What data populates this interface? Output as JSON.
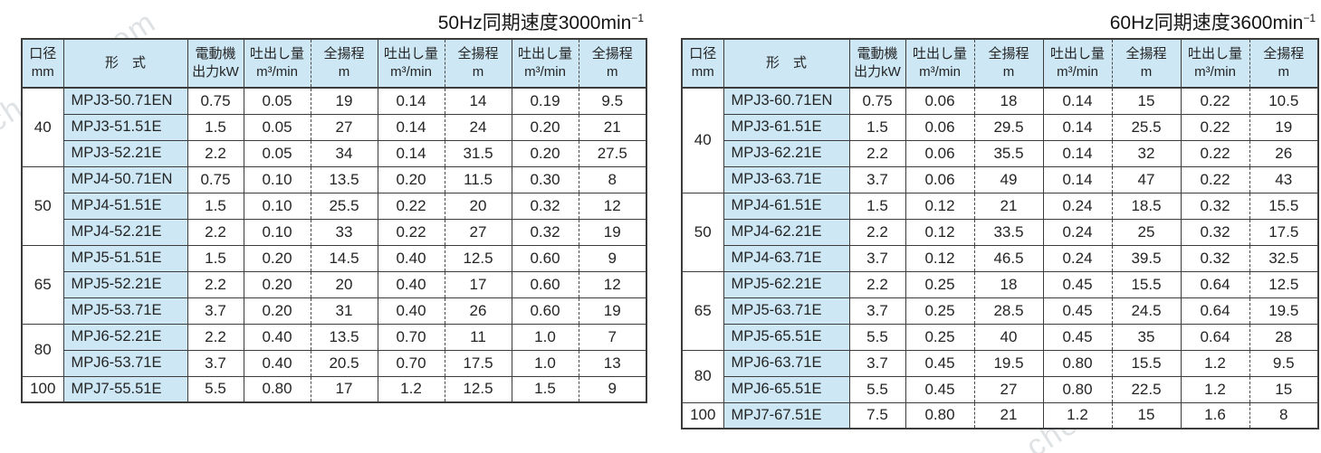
{
  "watermark": "chem17.com",
  "colors": {
    "header_background": "#cde7f5",
    "model_cell_background": "#cde7f5",
    "border": "#3c3c3c",
    "text": "#242424"
  },
  "headers": {
    "diameter_l1": "口径",
    "diameter_l2": "mm",
    "model": "形　式",
    "motor_l1": "電動機",
    "motor_l2": "出力kW",
    "discharge_l1": "吐出し量",
    "discharge_l2": "m³/min",
    "head_l1": "全揚程",
    "head_l2": "m"
  },
  "tables": [
    {
      "id": "50hz",
      "title_main": "50Hz同期速度3000min",
      "title_sup": "−1",
      "groups": [
        {
          "diameter": "40",
          "rows": [
            {
              "model": "MPJ3-50.71EN",
              "values": [
                "0.75",
                "0.05",
                "19",
                "0.14",
                "14",
                "0.19",
                "9.5"
              ]
            },
            {
              "model": "MPJ3-51.51E",
              "values": [
                "1.5",
                "0.05",
                "27",
                "0.14",
                "24",
                "0.20",
                "21"
              ]
            },
            {
              "model": "MPJ3-52.21E",
              "values": [
                "2.2",
                "0.05",
                "34",
                "0.14",
                "31.5",
                "0.20",
                "27.5"
              ]
            }
          ]
        },
        {
          "diameter": "50",
          "rows": [
            {
              "model": "MPJ4-50.71EN",
              "values": [
                "0.75",
                "0.10",
                "13.5",
                "0.20",
                "11.5",
                "0.30",
                "8"
              ]
            },
            {
              "model": "MPJ4-51.51E",
              "values": [
                "1.5",
                "0.10",
                "25.5",
                "0.22",
                "20",
                "0.32",
                "12"
              ]
            },
            {
              "model": "MPJ4-52.21E",
              "values": [
                "2.2",
                "0.10",
                "33",
                "0.22",
                "27",
                "0.32",
                "19"
              ]
            }
          ]
        },
        {
          "diameter": "65",
          "rows": [
            {
              "model": "MPJ5-51.51E",
              "values": [
                "1.5",
                "0.20",
                "14.5",
                "0.40",
                "12.5",
                "0.60",
                "9"
              ]
            },
            {
              "model": "MPJ5-52.21E",
              "values": [
                "2.2",
                "0.20",
                "20",
                "0.40",
                "17",
                "0.60",
                "12"
              ]
            },
            {
              "model": "MPJ5-53.71E",
              "values": [
                "3.7",
                "0.20",
                "31",
                "0.40",
                "26",
                "0.60",
                "19"
              ]
            }
          ]
        },
        {
          "diameter": "80",
          "rows": [
            {
              "model": "MPJ6-52.21E",
              "values": [
                "2.2",
                "0.40",
                "13.5",
                "0.70",
                "11",
                "1.0",
                "7"
              ]
            },
            {
              "model": "MPJ6-53.71E",
              "values": [
                "3.7",
                "0.40",
                "20.5",
                "0.70",
                "17.5",
                "1.0",
                "13"
              ]
            }
          ]
        },
        {
          "diameter": "100",
          "rows": [
            {
              "model": "MPJ7-55.51E",
              "values": [
                "5.5",
                "0.80",
                "17",
                "1.2",
                "12.5",
                "1.5",
                "9"
              ]
            }
          ]
        }
      ]
    },
    {
      "id": "60hz",
      "title_main": "60Hz同期速度3600min",
      "title_sup": "−1",
      "groups": [
        {
          "diameter": "40",
          "rows": [
            {
              "model": "MPJ3-60.71EN",
              "values": [
                "0.75",
                "0.06",
                "18",
                "0.14",
                "15",
                "0.22",
                "10.5"
              ]
            },
            {
              "model": "MPJ3-61.51E",
              "values": [
                "1.5",
                "0.06",
                "29.5",
                "0.14",
                "25.5",
                "0.22",
                "19"
              ]
            },
            {
              "model": "MPJ3-62.21E",
              "values": [
                "2.2",
                "0.06",
                "35.5",
                "0.14",
                "32",
                "0.22",
                "26"
              ]
            },
            {
              "model": "MPJ3-63.71E",
              "values": [
                "3.7",
                "0.06",
                "49",
                "0.14",
                "47",
                "0.22",
                "43"
              ]
            }
          ]
        },
        {
          "diameter": "50",
          "rows": [
            {
              "model": "MPJ4-61.51E",
              "values": [
                "1.5",
                "0.12",
                "21",
                "0.24",
                "18.5",
                "0.32",
                "15.5"
              ]
            },
            {
              "model": "MPJ4-62.21E",
              "values": [
                "2.2",
                "0.12",
                "33.5",
                "0.24",
                "25",
                "0.32",
                "17.5"
              ]
            },
            {
              "model": "MPJ4-63.71E",
              "values": [
                "3.7",
                "0.12",
                "46.5",
                "0.24",
                "39.5",
                "0.32",
                "32.5"
              ]
            }
          ]
        },
        {
          "diameter": "65",
          "rows": [
            {
              "model": "MPJ5-62.21E",
              "values": [
                "2.2",
                "0.25",
                "18",
                "0.45",
                "15.5",
                "0.64",
                "12.5"
              ]
            },
            {
              "model": "MPJ5-63.71E",
              "values": [
                "3.7",
                "0.25",
                "28.5",
                "0.45",
                "24.5",
                "0.64",
                "19.5"
              ]
            },
            {
              "model": "MPJ5-65.51E",
              "values": [
                "5.5",
                "0.25",
                "40",
                "0.45",
                "35",
                "0.64",
                "28"
              ]
            }
          ]
        },
        {
          "diameter": "80",
          "rows": [
            {
              "model": "MPJ6-63.71E",
              "values": [
                "3.7",
                "0.45",
                "19.5",
                "0.80",
                "15.5",
                "1.2",
                "9.5"
              ]
            },
            {
              "model": "MPJ6-65.51E",
              "values": [
                "5.5",
                "0.45",
                "27",
                "0.80",
                "22.5",
                "1.2",
                "15"
              ]
            }
          ]
        },
        {
          "diameter": "100",
          "rows": [
            {
              "model": "MPJ7-67.51E",
              "values": [
                "7.5",
                "0.80",
                "21",
                "1.2",
                "15",
                "1.6",
                "8"
              ]
            }
          ]
        }
      ]
    }
  ]
}
